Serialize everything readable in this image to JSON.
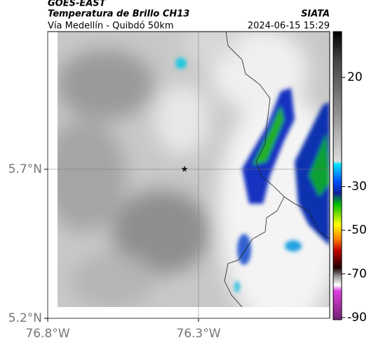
{
  "header": {
    "source": "GOES-EAST",
    "title": "Temperatura de Brillo CH13",
    "subtitle": "Vía Medellín - Quibdó 50km",
    "org": "SIATA",
    "timestamp": "2024-06-15 15:29"
  },
  "map": {
    "xlim": [
      -76.8,
      -75.865
    ],
    "ylim": [
      5.2,
      6.162
    ],
    "xticks": [
      {
        "value": -76.8,
        "label": "76.8°W"
      },
      {
        "value": -76.3,
        "label": "76.3°W"
      }
    ],
    "yticks": [
      {
        "value": 5.7,
        "label": "5.7°N"
      },
      {
        "value": 5.2,
        "label": "5.2°N"
      }
    ]
  },
  "colorbar": {
    "clim": [
      41,
      -91
    ],
    "ticks": [
      20,
      -30,
      -50,
      -70,
      -90
    ]
  }
}
